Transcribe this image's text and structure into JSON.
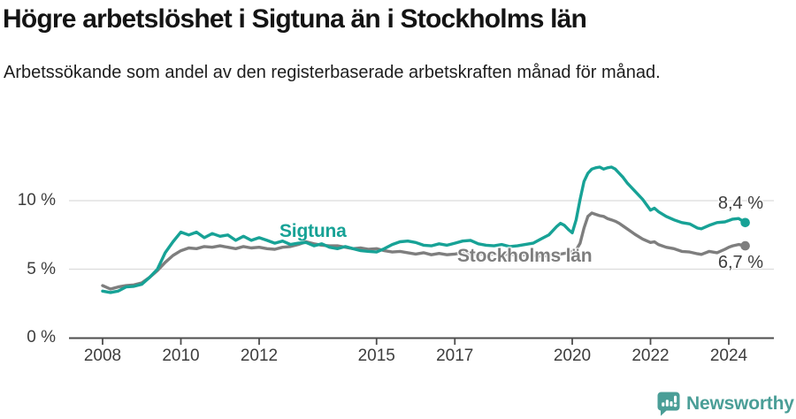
{
  "header": {
    "title": "Högre arbetslöshet i Sigtuna än i Stockholms län",
    "subtitle": "Arbetssökande som andel av den registerbaserade arbetskraften månad för månad."
  },
  "chart_data": {
    "type": "line",
    "title": "Högre arbetslöshet i Sigtuna än i Stockholms län",
    "subtitle": "Arbetssökande som andel av den registerbaserade arbetskraften månad för månad.",
    "xlabel": "",
    "ylabel": "",
    "unit": "%",
    "grid": "horizontal-only",
    "legend": "inline-labels",
    "xlim": [
      2007.7,
      2024.75
    ],
    "ylim": [
      0,
      13.5
    ],
    "y_ticks": [
      0,
      5,
      10
    ],
    "y_tick_labels": [
      "0 %",
      "5 %",
      "10 %"
    ],
    "y_gridlines": [
      5,
      10
    ],
    "x_ticks": [
      2008,
      2010,
      2012,
      2015,
      2017,
      2020,
      2022,
      2024
    ],
    "x_tick_labels": [
      "2008",
      "2010",
      "2012",
      "2015",
      "2017",
      "2020",
      "2022",
      "2024"
    ],
    "x": [
      2008.0,
      2008.2,
      2008.4,
      2008.6,
      2008.8,
      2009.0,
      2009.2,
      2009.4,
      2009.6,
      2009.8,
      2010.0,
      2010.2,
      2010.4,
      2010.6,
      2010.8,
      2011.0,
      2011.2,
      2011.4,
      2011.6,
      2011.8,
      2012.0,
      2012.2,
      2012.4,
      2012.6,
      2012.8,
      2013.0,
      2013.2,
      2013.4,
      2013.6,
      2013.8,
      2014.0,
      2014.2,
      2014.4,
      2014.6,
      2014.8,
      2015.0,
      2015.2,
      2015.4,
      2015.6,
      2015.8,
      2016.0,
      2016.2,
      2016.4,
      2016.6,
      2016.8,
      2017.0,
      2017.2,
      2017.4,
      2017.6,
      2017.8,
      2018.0,
      2018.2,
      2018.4,
      2018.6,
      2018.8,
      2019.0,
      2019.2,
      2019.4,
      2019.6,
      2019.7,
      2019.8,
      2019.9,
      2020.0,
      2020.1,
      2020.2,
      2020.3,
      2020.4,
      2020.5,
      2020.6,
      2020.7,
      2020.8,
      2020.9,
      2021.0,
      2021.1,
      2021.2,
      2021.3,
      2021.4,
      2021.5,
      2021.6,
      2021.8,
      2022.0,
      2022.1,
      2022.2,
      2022.4,
      2022.6,
      2022.8,
      2023.0,
      2023.2,
      2023.3,
      2023.5,
      2023.7,
      2023.9,
      2024.0,
      2024.1,
      2024.25,
      2024.42
    ],
    "series": [
      {
        "name": "Sigtuna",
        "color": "#17a296",
        "end_label": "8,4 %",
        "end_value": 8.4,
        "values": [
          3.4,
          3.3,
          3.4,
          3.7,
          3.75,
          3.9,
          4.4,
          5.0,
          6.2,
          7.0,
          7.7,
          7.5,
          7.7,
          7.3,
          7.6,
          7.4,
          7.5,
          7.1,
          7.4,
          7.1,
          7.3,
          7.1,
          6.9,
          7.05,
          6.8,
          6.9,
          6.95,
          6.7,
          6.85,
          6.6,
          6.5,
          6.65,
          6.5,
          6.35,
          6.3,
          6.25,
          6.5,
          6.8,
          7.0,
          7.05,
          6.95,
          6.75,
          6.7,
          6.85,
          6.75,
          6.9,
          7.05,
          7.1,
          6.85,
          6.75,
          6.7,
          6.8,
          6.65,
          6.7,
          6.8,
          6.9,
          7.2,
          7.5,
          8.1,
          8.35,
          8.2,
          7.9,
          7.65,
          8.6,
          10.1,
          11.4,
          12.0,
          12.3,
          12.4,
          12.45,
          12.3,
          12.4,
          12.45,
          12.3,
          12.0,
          11.7,
          11.3,
          11.0,
          10.7,
          10.1,
          9.3,
          9.45,
          9.2,
          8.85,
          8.6,
          8.4,
          8.3,
          8.0,
          7.95,
          8.2,
          8.4,
          8.45,
          8.55,
          8.65,
          8.7,
          8.4
        ]
      },
      {
        "name": "Stockholms län",
        "color": "#7e7e7e",
        "end_label": "6,7 %",
        "end_value": 6.7,
        "values": [
          3.8,
          3.55,
          3.7,
          3.8,
          3.85,
          4.0,
          4.4,
          4.9,
          5.5,
          6.0,
          6.35,
          6.55,
          6.5,
          6.65,
          6.6,
          6.7,
          6.6,
          6.5,
          6.65,
          6.55,
          6.6,
          6.5,
          6.45,
          6.6,
          6.65,
          6.8,
          7.0,
          6.85,
          6.75,
          6.7,
          6.7,
          6.6,
          6.5,
          6.55,
          6.45,
          6.5,
          6.35,
          6.25,
          6.3,
          6.2,
          6.1,
          6.2,
          6.05,
          6.15,
          6.05,
          6.1,
          6.2,
          6.1,
          6.15,
          6.05,
          6.1,
          6.05,
          6.1,
          6.0,
          6.05,
          6.0,
          5.95,
          6.0,
          6.05,
          6.1,
          6.15,
          6.2,
          6.3,
          6.4,
          6.9,
          8.0,
          8.85,
          9.1,
          9.0,
          8.9,
          8.85,
          8.7,
          8.6,
          8.5,
          8.35,
          8.15,
          7.95,
          7.75,
          7.55,
          7.2,
          6.95,
          7.0,
          6.8,
          6.6,
          6.5,
          6.3,
          6.25,
          6.12,
          6.08,
          6.3,
          6.2,
          6.45,
          6.6,
          6.7,
          6.8,
          6.7
        ]
      }
    ]
  },
  "footer": {
    "brand": "Newsworthy",
    "brand_color": "#4a9e97",
    "icon": "newsworthy-bars-exclamation"
  },
  "colors": {
    "gridline": "#dcdcdc",
    "axis": "#4d4d4d",
    "tick_text": "#3d3d3d",
    "sigtuna": "#17a296",
    "stockholms_lan": "#7e7e7e"
  }
}
